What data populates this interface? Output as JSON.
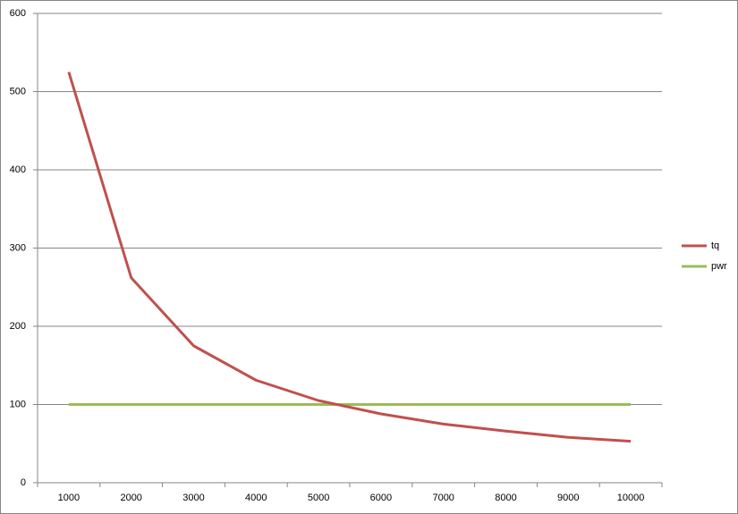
{
  "chart_data": {
    "type": "line",
    "categories": [
      "1000",
      "2000",
      "3000",
      "4000",
      "5000",
      "6000",
      "7000",
      "8000",
      "9000",
      "10000"
    ],
    "series": [
      {
        "name": "tq",
        "color": "#c0504d",
        "values": [
          525,
          262,
          175,
          131,
          105,
          88,
          75,
          66,
          58,
          53
        ]
      },
      {
        "name": "pwr",
        "color": "#9bbb59",
        "values": [
          100,
          100,
          100,
          100,
          100,
          100,
          100,
          100,
          100,
          100
        ]
      }
    ],
    "ylim": [
      0,
      600
    ],
    "yticks": [
      0,
      100,
      200,
      300,
      400,
      500,
      600
    ],
    "grid": true,
    "legend": "right"
  }
}
